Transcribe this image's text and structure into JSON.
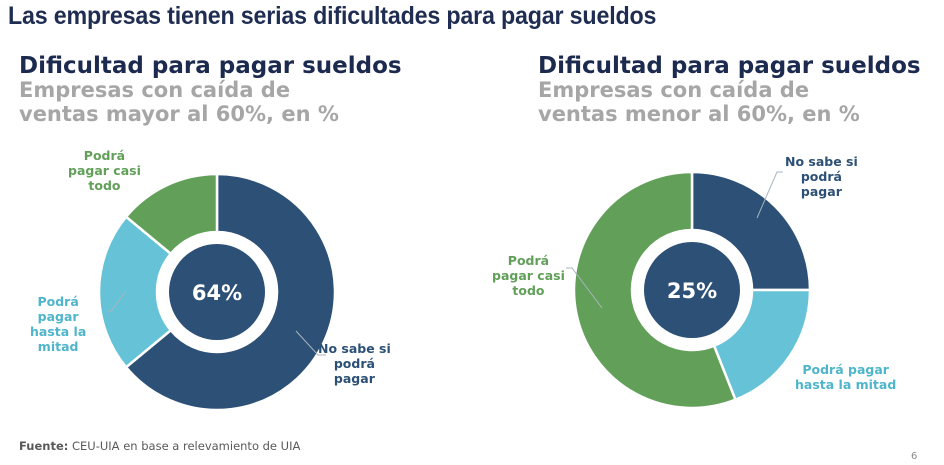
{
  "page": {
    "title": "Las empresas tienen serias dificultades para pagar sueldos",
    "footer_label": "Fuente:",
    "footer_text": " CEU-UIA en base a relevamiento de UIA",
    "page_number": "6"
  },
  "colors": {
    "navy": "#2c5076",
    "cyan": "#66c3d7",
    "green": "#62a05a",
    "title": "#1b2a4e",
    "subtitle": "#a6a6a6"
  },
  "chart_data": [
    {
      "type": "pie",
      "variant": "donut",
      "title": "Dificultad para pagar sueldos",
      "subtitle_line1": "Empresas con caída de",
      "subtitle_line2": "ventas mayor al 60%, en %",
      "center_label": "64%",
      "slices": [
        {
          "label": "No sabe si podrá pagar",
          "label_lines": [
            "No sabe si",
            "podrá",
            "pagar"
          ],
          "value": 64,
          "color": "#2c5076"
        },
        {
          "label": "Podrá pagar hasta la mitad",
          "label_lines": [
            "Podrá",
            "pagar",
            "hasta la",
            "mitad"
          ],
          "value": 22,
          "color": "#66c3d7"
        },
        {
          "label": "Podrá pagar casi todo",
          "label_lines": [
            "Podrá",
            "pagar casi",
            "todo"
          ],
          "value": 14,
          "color": "#62a05a"
        }
      ]
    },
    {
      "type": "pie",
      "variant": "donut",
      "title": "Dificultad para pagar sueldos",
      "subtitle_line1": "Empresas con caída de",
      "subtitle_line2": "ventas menor al 60%, en %",
      "center_label": "25%",
      "slices": [
        {
          "label": "No sabe si podrá pagar",
          "label_lines": [
            "No sabe si",
            "podrá",
            "pagar"
          ],
          "value": 25,
          "color": "#2c5076"
        },
        {
          "label": "Podrá pagar hasta la mitad",
          "label_lines": [
            "Podrá pagar",
            "hasta la mitad"
          ],
          "value": 19,
          "color": "#66c3d7"
        },
        {
          "label": "Podrá pagar casi todo",
          "label_lines": [
            "Podrá",
            "pagar casi",
            "todo"
          ],
          "value": 56,
          "color": "#62a05a"
        }
      ]
    }
  ]
}
